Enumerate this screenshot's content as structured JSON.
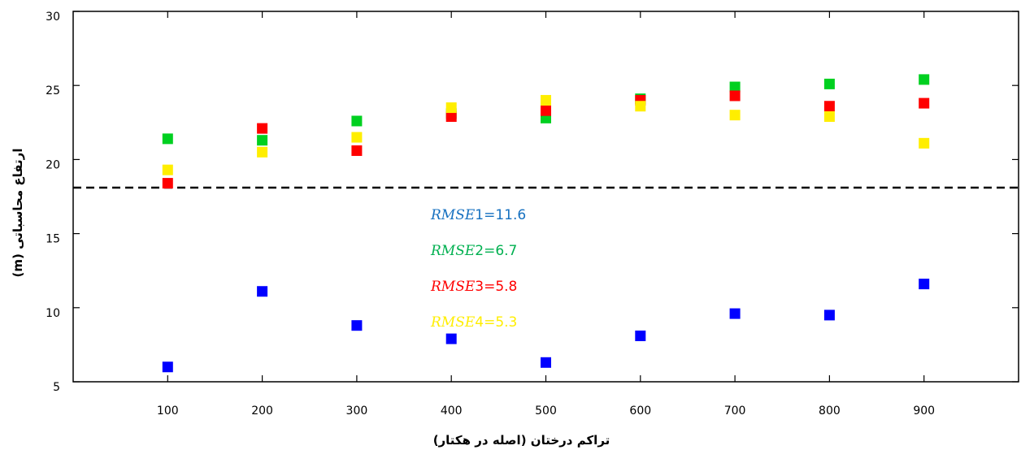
{
  "chart_data": {
    "type": "scatter",
    "title": "",
    "xlabel": "تراکم درختان (اصله در هکتار)",
    "ylabel": "ارتفاع محاسباتی (m)",
    "xlim": [
      0,
      1000
    ],
    "ylim": [
      5,
      30
    ],
    "x_ticks": [
      "100",
      "200",
      "300",
      "400",
      "500",
      "600",
      "700",
      "800",
      "900"
    ],
    "y_ticks": [
      "5",
      "10",
      "15",
      "20",
      "25",
      "30"
    ],
    "x": [
      100,
      200,
      300,
      400,
      500,
      600,
      700,
      800,
      900
    ],
    "reference_line": {
      "y": 18.1,
      "style": "dashed",
      "color": "#000000"
    },
    "grid": false,
    "series": [
      {
        "color": "#0000ff",
        "values": [
          6.0,
          11.1,
          8.8,
          7.9,
          6.3,
          8.1,
          9.6,
          9.5,
          11.6
        ]
      },
      {
        "color": "#00d020",
        "values": [
          21.4,
          21.3,
          22.6,
          23.1,
          22.8,
          24.1,
          24.9,
          25.1,
          25.4
        ]
      },
      {
        "color": "#ff0000",
        "values": [
          18.4,
          22.1,
          20.6,
          22.9,
          23.3,
          24.0,
          24.3,
          23.6,
          23.8
        ]
      },
      {
        "color": "#ffee00",
        "values": [
          19.3,
          20.5,
          21.5,
          23.5,
          24.0,
          23.6,
          23.0,
          22.9,
          21.1
        ]
      }
    ],
    "annotations": [
      {
        "prefix": "RMSE",
        "suffix": "1=11.6",
        "color": "#1570c0"
      },
      {
        "prefix": "RMSE",
        "suffix": "2=6.7",
        "color": "#00b050"
      },
      {
        "prefix": "RMSE",
        "suffix": "3=5.8",
        "color": "#ff0000"
      },
      {
        "prefix": "RMSE",
        "suffix": "4=5.3",
        "color": "#ffee00"
      }
    ]
  }
}
